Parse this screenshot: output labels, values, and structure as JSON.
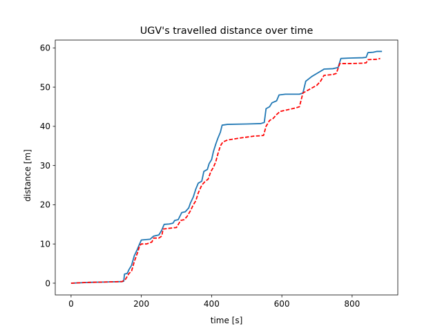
{
  "chart_data": {
    "type": "line",
    "title": "UGV's travelled distance over time",
    "xlabel": "time [s]",
    "ylabel": "distance [m]",
    "xlim": [
      -45,
      930
    ],
    "ylim": [
      -3,
      62
    ],
    "x_ticks": [
      0,
      200,
      400,
      600,
      800
    ],
    "y_ticks": [
      0,
      10,
      20,
      30,
      40,
      50,
      60
    ],
    "grid": false,
    "legend": "none",
    "series": [
      {
        "color": "#1f77b4",
        "style": "solid",
        "points": [
          [
            0,
            0.0
          ],
          [
            50,
            0.2
          ],
          [
            100,
            0.3
          ],
          [
            145,
            0.4
          ],
          [
            150,
            0.5
          ],
          [
            152,
            2.3
          ],
          [
            160,
            2.5
          ],
          [
            165,
            3.5
          ],
          [
            172,
            4.5
          ],
          [
            180,
            7.0
          ],
          [
            188,
            8.5
          ],
          [
            195,
            10.0
          ],
          [
            200,
            11.0
          ],
          [
            210,
            11.1
          ],
          [
            225,
            11.2
          ],
          [
            235,
            12.0
          ],
          [
            250,
            12.3
          ],
          [
            258,
            13.5
          ],
          [
            265,
            15.0
          ],
          [
            280,
            15.1
          ],
          [
            290,
            15.3
          ],
          [
            295,
            16.0
          ],
          [
            305,
            16.2
          ],
          [
            315,
            18.0
          ],
          [
            325,
            18.2
          ],
          [
            335,
            19.2
          ],
          [
            340,
            20.5
          ],
          [
            348,
            22.0
          ],
          [
            355,
            24.0
          ],
          [
            362,
            25.5
          ],
          [
            372,
            26.0
          ],
          [
            378,
            28.5
          ],
          [
            388,
            29.0
          ],
          [
            393,
            30.5
          ],
          [
            400,
            31.5
          ],
          [
            405,
            33.5
          ],
          [
            412,
            35.5
          ],
          [
            418,
            37.0
          ],
          [
            425,
            38.5
          ],
          [
            430,
            40.3
          ],
          [
            445,
            40.5
          ],
          [
            500,
            40.6
          ],
          [
            540,
            40.7
          ],
          [
            550,
            41.0
          ],
          [
            555,
            44.5
          ],
          [
            565,
            45.0
          ],
          [
            572,
            46.0
          ],
          [
            585,
            46.5
          ],
          [
            592,
            48.0
          ],
          [
            610,
            48.2
          ],
          [
            650,
            48.2
          ],
          [
            660,
            48.5
          ],
          [
            668,
            51.5
          ],
          [
            675,
            52.0
          ],
          [
            685,
            52.7
          ],
          [
            700,
            53.5
          ],
          [
            715,
            54.3
          ],
          [
            720,
            54.6
          ],
          [
            745,
            54.7
          ],
          [
            760,
            55.0
          ],
          [
            768,
            57.3
          ],
          [
            790,
            57.4
          ],
          [
            830,
            57.5
          ],
          [
            840,
            57.6
          ],
          [
            845,
            58.8
          ],
          [
            860,
            58.9
          ],
          [
            870,
            59.1
          ],
          [
            885,
            59.1
          ]
        ]
      },
      {
        "color": "#ff0000",
        "style": "dashed",
        "points": [
          [
            0,
            0.0
          ],
          [
            50,
            0.2
          ],
          [
            100,
            0.3
          ],
          [
            145,
            0.4
          ],
          [
            155,
            1.0
          ],
          [
            165,
            2.5
          ],
          [
            172,
            3.0
          ],
          [
            180,
            5.5
          ],
          [
            190,
            8.0
          ],
          [
            195,
            9.5
          ],
          [
            200,
            10.0
          ],
          [
            215,
            10.0
          ],
          [
            230,
            10.5
          ],
          [
            235,
            11.5
          ],
          [
            250,
            11.5
          ],
          [
            258,
            12.0
          ],
          [
            262,
            13.8
          ],
          [
            280,
            14.0
          ],
          [
            300,
            14.2
          ],
          [
            312,
            16.0
          ],
          [
            322,
            16.2
          ],
          [
            330,
            17.0
          ],
          [
            340,
            18.5
          ],
          [
            348,
            20.0
          ],
          [
            355,
            21.0
          ],
          [
            362,
            23.0
          ],
          [
            372,
            25.0
          ],
          [
            382,
            26.0
          ],
          [
            390,
            26.5
          ],
          [
            398,
            28.5
          ],
          [
            405,
            29.5
          ],
          [
            412,
            31.0
          ],
          [
            418,
            33.0
          ],
          [
            425,
            35.0
          ],
          [
            432,
            36.0
          ],
          [
            445,
            36.5
          ],
          [
            480,
            37.0
          ],
          [
            520,
            37.5
          ],
          [
            540,
            37.6
          ],
          [
            548,
            37.7
          ],
          [
            555,
            40.0
          ],
          [
            565,
            41.5
          ],
          [
            575,
            42.0
          ],
          [
            585,
            43.0
          ],
          [
            595,
            43.8
          ],
          [
            620,
            44.3
          ],
          [
            640,
            44.7
          ],
          [
            650,
            45.0
          ],
          [
            660,
            48.5
          ],
          [
            670,
            49.0
          ],
          [
            680,
            49.5
          ],
          [
            690,
            50.0
          ],
          [
            700,
            50.5
          ],
          [
            710,
            51.5
          ],
          [
            720,
            53.0
          ],
          [
            745,
            53.2
          ],
          [
            755,
            53.5
          ],
          [
            765,
            56.0
          ],
          [
            790,
            56.0
          ],
          [
            830,
            56.1
          ],
          [
            840,
            56.2
          ],
          [
            845,
            57.0
          ],
          [
            870,
            57.1
          ],
          [
            880,
            57.3
          ]
        ]
      }
    ]
  }
}
